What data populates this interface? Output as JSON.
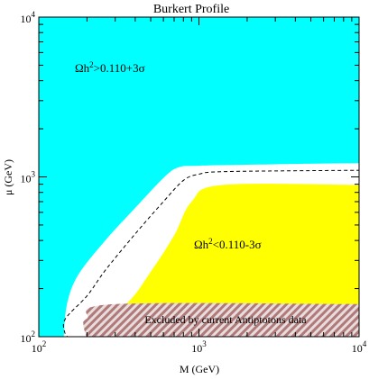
{
  "chart_data": {
    "type": "area",
    "title": "Burkert Profile",
    "xlabel": "M (GeV)",
    "ylabel": "μ (GeV)",
    "x_scale": "log",
    "y_scale": "log",
    "xlim": [
      100,
      10000
    ],
    "ylim": [
      100,
      10000
    ],
    "grid": false,
    "x_ticks": [
      {
        "value": 100,
        "base": "10",
        "exp": "2"
      },
      {
        "value": 1000,
        "base": "10",
        "exp": "3"
      },
      {
        "value": 10000,
        "base": "10",
        "exp": "4"
      }
    ],
    "y_ticks": [
      {
        "value": 100,
        "base": "10",
        "exp": "2"
      },
      {
        "value": 1000,
        "base": "10",
        "exp": "3"
      },
      {
        "value": 10000,
        "base": "10",
        "exp": "4"
      }
    ],
    "regions": [
      {
        "label_parts": [
          "Ωh",
          "2",
          ">0.110+3σ"
        ],
        "label_at": [
          180,
          4700
        ],
        "color": "#00ffff"
      },
      {
        "label_parts": [
          "",
          "",
          ""
        ],
        "color": "#ffffff",
        "boundary": [
          [
            143,
            100
          ],
          [
            150,
            160
          ],
          [
            176,
            243
          ],
          [
            260,
            400
          ],
          [
            400,
            640
          ],
          [
            610,
            1000
          ],
          [
            750,
            1150
          ],
          [
            1000,
            1175
          ],
          [
            3000,
            1200
          ],
          [
            10000,
            1220
          ]
        ]
      },
      {
        "label_parts": [
          "Ωh",
          "2",
          "<0.110-3σ"
        ],
        "label_at": [
          1000,
          480
        ],
        "color": "#ffff00",
        "boundary": [
          [
            208,
            100
          ],
          [
            196,
            110
          ],
          [
            205,
            120
          ],
          [
            350,
            160
          ],
          [
            500,
            255
          ],
          [
            700,
            430
          ],
          [
            900,
            700
          ],
          [
            1400,
            890
          ],
          [
            10000,
            890
          ]
        ]
      },
      {
        "label": "Excluded by current Antiptotons data",
        "label_at": [
          1300,
          120
        ],
        "color": "#b07a7a",
        "pattern": "hatched",
        "boundary": [
          [
            200,
            100
          ],
          [
            190,
            118
          ],
          [
            200,
            130
          ],
          [
            300,
            160
          ],
          [
            10000,
            160
          ]
        ]
      }
    ],
    "contour": {
      "style": "dashed",
      "color": "#000000",
      "points": [
        [
          155,
          100
        ],
        [
          145,
          107
        ],
        [
          147,
          130
        ],
        [
          200,
          180
        ],
        [
          260,
          260
        ],
        [
          400,
          440
        ],
        [
          600,
          700
        ],
        [
          800,
          950
        ],
        [
          1000,
          1040
        ],
        [
          1500,
          1080
        ],
        [
          10000,
          1100
        ]
      ]
    }
  }
}
